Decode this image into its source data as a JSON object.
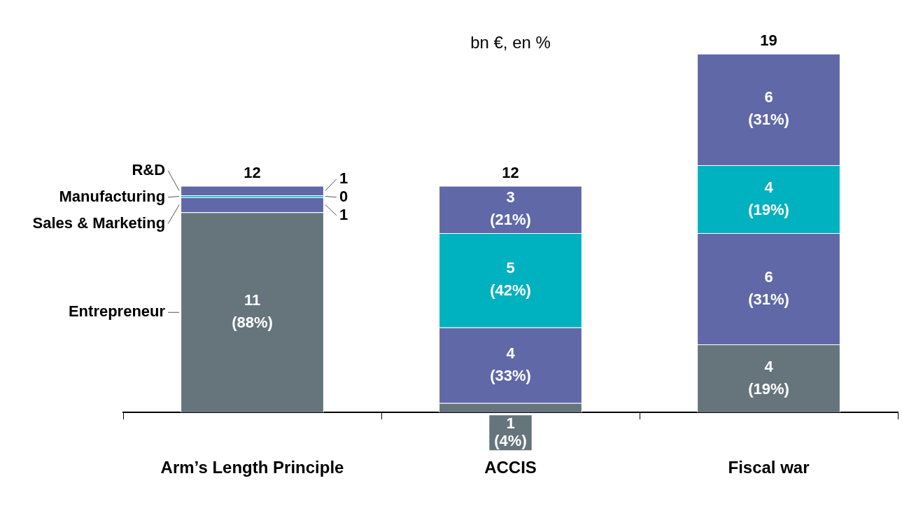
{
  "chart_data": {
    "type": "bar",
    "subtitle": "bn €, en %",
    "stacked": true,
    "categories": [
      "Arm’s Length Principle",
      "ACCIS",
      "Fiscal war"
    ],
    "series": [
      {
        "name": "Entrepreneur",
        "color": "#66747c",
        "values": [
          10.6,
          0.5,
          3.6
        ],
        "value_labels": [
          "11 (88%)",
          "1 (4%)",
          "4 (19%)"
        ]
      },
      {
        "name": "Sales & Marketing",
        "color": "#6068a8",
        "values": [
          0.8,
          4.0,
          5.9
        ],
        "value_labels": [
          "1",
          "4 (33%)",
          "6 (31%)"
        ]
      },
      {
        "name": "Manufacturing",
        "color": "#00b1bf",
        "values": [
          0.1,
          5.0,
          3.6
        ],
        "value_labels": [
          "0",
          "5 (42%)",
          "4 (19%)"
        ]
      },
      {
        "name": "R&D",
        "color": "#6068a8",
        "values": [
          0.5,
          2.5,
          5.9
        ],
        "value_labels": [
          "1",
          "3 (21%)",
          "6 (31%)"
        ]
      }
    ],
    "totals": [
      "12",
      "12",
      "19"
    ],
    "legend": false
  }
}
